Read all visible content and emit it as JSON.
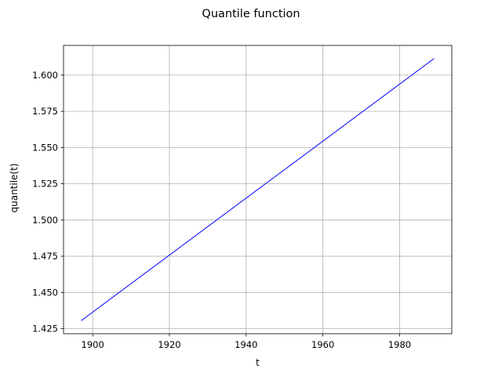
{
  "chart_data": {
    "type": "line",
    "title": "Quantile function",
    "xlabel": "t",
    "ylabel": "quantile(t)",
    "xlim": [
      1892.4,
      1993.6
    ],
    "ylim": [
      1.4215,
      1.6205
    ],
    "x_ticks": [
      1900,
      1920,
      1940,
      1960,
      1980
    ],
    "x_tick_labels": [
      "1900",
      "1920",
      "1940",
      "1960",
      "1980"
    ],
    "y_ticks": [
      1.425,
      1.45,
      1.475,
      1.5,
      1.525,
      1.55,
      1.575,
      1.6
    ],
    "y_tick_labels": [
      "1.425",
      "1.450",
      "1.475",
      "1.500",
      "1.525",
      "1.550",
      "1.575",
      "1.600"
    ],
    "grid": true,
    "legend": null,
    "series": [
      {
        "color": "#0000ff",
        "x": [
          1897,
          1989
        ],
        "y": [
          1.4305,
          1.6115
        ]
      }
    ]
  },
  "colors": {
    "line": "#0000ff",
    "grid": "#b0b0b0",
    "axes": "#000000",
    "background": "#ffffff"
  }
}
